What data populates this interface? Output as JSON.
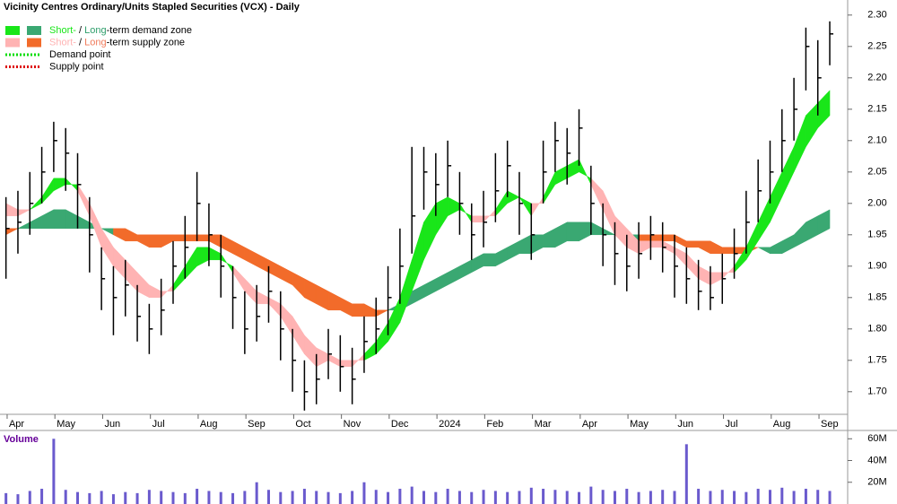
{
  "chart_data": [
    {
      "type": "hlc",
      "title": "Vicinity Centres Ordinary/Units Stapled Securities (VCX) - Daily",
      "legend": [
        {
          "parts": [
            {
              "text": "Short-",
              "color": "#19e619"
            },
            {
              "text": " / "
            },
            {
              "text": "Long",
              "color": "#2e9e6b"
            },
            {
              "text": "-term demand zone"
            }
          ],
          "swatches": [
            "#19e619",
            "#3aa872"
          ]
        },
        {
          "parts": [
            {
              "text": "Short-",
              "color": "#ffb3b3"
            },
            {
              "text": " / "
            },
            {
              "text": "Long",
              "color": "#f07a5a"
            },
            {
              "text": "-term supply zone"
            }
          ],
          "swatches": [
            "#ffb3b3",
            "#f26b2a"
          ]
        },
        {
          "parts": [
            {
              "text": "Demand point"
            }
          ],
          "line_color": "#00dd00"
        },
        {
          "parts": [
            {
              "text": "Supply point"
            }
          ],
          "line_color": "#dd0000"
        }
      ],
      "categories": [
        null,
        "Apr",
        null,
        null,
        null,
        "May",
        null,
        null,
        null,
        "Jun",
        null,
        null,
        null,
        "Jul",
        null,
        null,
        null,
        "Aug",
        null,
        null,
        null,
        "Sep",
        null,
        null,
        null,
        "Oct",
        null,
        null,
        null,
        "Nov",
        null,
        null,
        null,
        "Dec",
        null,
        null,
        null,
        "2024",
        null,
        null,
        null,
        "Feb",
        null,
        null,
        null,
        "Mar",
        null,
        null,
        null,
        "Apr",
        null,
        null,
        null,
        "May",
        null,
        null,
        null,
        "Jun",
        null,
        null,
        null,
        "Jul",
        null,
        null,
        null,
        "Aug",
        null,
        null,
        null,
        "Sep"
      ],
      "high": [
        2.01,
        2.02,
        2.05,
        2.09,
        2.13,
        2.12,
        2.08,
        2.01,
        1.93,
        1.9,
        1.91,
        1.87,
        1.84,
        1.88,
        1.94,
        1.98,
        2.05,
        2.0,
        1.95,
        1.9,
        1.86,
        1.87,
        1.9,
        1.86,
        1.8,
        1.75,
        1.76,
        1.8,
        1.79,
        1.77,
        1.82,
        1.85,
        1.9,
        1.96,
        2.09,
        2.09,
        2.08,
        2.1,
        2.05,
        2.0,
        2.02,
        2.08,
        2.1,
        2.05,
        2.0,
        2.1,
        2.13,
        2.12,
        2.15,
        2.06,
        2.0,
        1.97,
        1.95,
        1.97,
        1.98,
        1.97,
        1.95,
        1.93,
        1.91,
        1.9,
        1.92,
        1.96,
        2.02,
        2.07,
        2.1,
        2.15,
        2.2,
        2.28,
        2.26,
        2.29
      ],
      "low": [
        1.88,
        1.92,
        1.95,
        2.0,
        2.05,
        2.02,
        1.96,
        1.89,
        1.83,
        1.79,
        1.82,
        1.78,
        1.76,
        1.79,
        1.84,
        1.88,
        1.94,
        1.9,
        1.85,
        1.8,
        1.76,
        1.78,
        1.81,
        1.75,
        1.7,
        1.67,
        1.68,
        1.72,
        1.7,
        1.68,
        1.73,
        1.76,
        1.79,
        1.84,
        1.92,
        1.99,
        1.98,
        2.01,
        1.95,
        1.91,
        1.93,
        1.97,
        2.01,
        1.95,
        1.91,
        2.0,
        2.05,
        2.03,
        2.06,
        1.95,
        1.9,
        1.87,
        1.86,
        1.88,
        1.91,
        1.89,
        1.85,
        1.84,
        1.83,
        1.83,
        1.84,
        1.88,
        1.92,
        1.97,
        2.0,
        2.05,
        2.1,
        2.18,
        2.14,
        2.22
      ],
      "close": [
        1.96,
        1.97,
        2.0,
        2.05,
        2.1,
        2.08,
        2.03,
        1.95,
        1.88,
        1.85,
        1.87,
        1.82,
        1.8,
        1.83,
        1.9,
        1.93,
        2.0,
        1.95,
        1.9,
        1.85,
        1.8,
        1.82,
        1.86,
        1.8,
        1.75,
        1.7,
        1.72,
        1.76,
        1.74,
        1.72,
        1.78,
        1.8,
        1.85,
        1.9,
        1.98,
        2.05,
        2.03,
        2.06,
        2.0,
        1.95,
        1.97,
        2.02,
        2.06,
        2.0,
        1.95,
        2.05,
        2.1,
        2.08,
        2.12,
        2.0,
        1.95,
        1.92,
        1.9,
        1.92,
        1.95,
        1.93,
        1.9,
        1.88,
        1.86,
        1.85,
        1.88,
        1.92,
        1.97,
        2.02,
        2.05,
        2.1,
        2.15,
        2.25,
        2.2,
        2.27
      ],
      "zones": {
        "short": [
          [
            1.98,
            1.98,
            1.99,
            2.01,
            2.04,
            2.04,
            2.02,
            1.98,
            1.93,
            1.9,
            1.88,
            1.86,
            1.85,
            1.85,
            1.87,
            1.9,
            1.93,
            1.93,
            1.92,
            1.89,
            1.86,
            1.84,
            1.84,
            1.82,
            1.79,
            1.76,
            1.74,
            1.75,
            1.74,
            1.74,
            1.76,
            1.78,
            1.81,
            1.85,
            1.91,
            1.97,
            2.0,
            2.01,
            2.0,
            1.97,
            1.97,
            1.99,
            2.02,
            2.01,
            1.98,
            2.01,
            2.05,
            2.06,
            2.07,
            2.03,
            1.99,
            1.95,
            1.93,
            1.92,
            1.93,
            1.93,
            1.92,
            1.9,
            1.88,
            1.87,
            1.88,
            1.9,
            1.93,
            1.97,
            2.01,
            2.05,
            2.09,
            2.14,
            2.16,
            2.18
          ],
          [
            2.0,
            1.99,
            1.99,
            2.0,
            2.02,
            2.03,
            2.03,
            2.0,
            1.96,
            1.93,
            1.91,
            1.89,
            1.87,
            1.86,
            1.86,
            1.88,
            1.9,
            1.91,
            1.91,
            1.9,
            1.88,
            1.86,
            1.85,
            1.84,
            1.82,
            1.79,
            1.77,
            1.76,
            1.75,
            1.75,
            1.75,
            1.76,
            1.78,
            1.81,
            1.86,
            1.91,
            1.95,
            1.98,
            1.99,
            1.98,
            1.98,
            1.98,
            2.0,
            2.01,
            2.0,
            2.0,
            2.03,
            2.04,
            2.05,
            2.04,
            2.02,
            1.98,
            1.96,
            1.94,
            1.94,
            1.94,
            1.93,
            1.92,
            1.9,
            1.89,
            1.89,
            1.89,
            1.91,
            1.94,
            1.97,
            2.01,
            2.05,
            2.09,
            2.12,
            2.14
          ]
        ],
        "long": [
          [
            1.95,
            1.96,
            1.97,
            1.98,
            1.99,
            1.99,
            1.98,
            1.97,
            1.96,
            1.95,
            1.94,
            1.94,
            1.93,
            1.93,
            1.94,
            1.94,
            1.94,
            1.94,
            1.93,
            1.92,
            1.91,
            1.9,
            1.89,
            1.88,
            1.87,
            1.85,
            1.84,
            1.83,
            1.83,
            1.82,
            1.82,
            1.82,
            1.83,
            1.84,
            1.86,
            1.87,
            1.88,
            1.89,
            1.9,
            1.91,
            1.92,
            1.92,
            1.93,
            1.94,
            1.95,
            1.95,
            1.96,
            1.97,
            1.97,
            1.97,
            1.96,
            1.95,
            1.95,
            1.94,
            1.94,
            1.94,
            1.94,
            1.93,
            1.93,
            1.92,
            1.92,
            1.92,
            1.92,
            1.93,
            1.93,
            1.94,
            1.95,
            1.97,
            1.98,
            1.99
          ],
          [
            1.96,
            1.96,
            1.96,
            1.96,
            1.96,
            1.96,
            1.96,
            1.96,
            1.96,
            1.96,
            1.96,
            1.95,
            1.95,
            1.95,
            1.95,
            1.95,
            1.95,
            1.95,
            1.95,
            1.94,
            1.93,
            1.92,
            1.91,
            1.9,
            1.89,
            1.88,
            1.87,
            1.86,
            1.85,
            1.84,
            1.84,
            1.83,
            1.83,
            1.83,
            1.84,
            1.85,
            1.86,
            1.87,
            1.88,
            1.89,
            1.9,
            1.9,
            1.91,
            1.92,
            1.92,
            1.93,
            1.93,
            1.94,
            1.94,
            1.95,
            1.95,
            1.95,
            1.95,
            1.95,
            1.95,
            1.95,
            1.95,
            1.94,
            1.94,
            1.94,
            1.93,
            1.93,
            1.93,
            1.93,
            1.92,
            1.92,
            1.93,
            1.94,
            1.95,
            1.96
          ]
        ]
      },
      "ylim": [
        1.664,
        2.324
      ],
      "yticks": [
        {
          "value": 1.7,
          "label": "1.70"
        },
        {
          "value": 1.75,
          "label": "1.75"
        },
        {
          "value": 1.8,
          "label": "1.80"
        },
        {
          "value": 1.85,
          "label": "1.85"
        },
        {
          "value": 1.9,
          "label": "1.90"
        },
        {
          "value": 1.95,
          "label": "1.95"
        },
        {
          "value": 2.0,
          "label": "2.00"
        },
        {
          "value": 2.05,
          "label": "2.05"
        },
        {
          "value": 2.1,
          "label": "2.10"
        },
        {
          "value": 2.15,
          "label": "2.15"
        },
        {
          "value": 2.2,
          "label": "2.20"
        },
        {
          "value": 2.25,
          "label": "2.25"
        },
        {
          "value": 2.3,
          "label": "2.30"
        }
      ],
      "color": "#000000"
    },
    {
      "type": "bar",
      "title": "Volume",
      "values": [
        10000000,
        9000000,
        12000000,
        14000000,
        60000000,
        13000000,
        11000000,
        10000000,
        12000000,
        9000000,
        11000000,
        10000000,
        13000000,
        12000000,
        11000000,
        10000000,
        14000000,
        12000000,
        11000000,
        10000000,
        12000000,
        20000000,
        13000000,
        11000000,
        12000000,
        14000000,
        12000000,
        11000000,
        10000000,
        12000000,
        20000000,
        13000000,
        11000000,
        14000000,
        16000000,
        12000000,
        11000000,
        14000000,
        12000000,
        11000000,
        13000000,
        12000000,
        11000000,
        12000000,
        15000000,
        14000000,
        13000000,
        12000000,
        11000000,
        16000000,
        13000000,
        12000000,
        14000000,
        11000000,
        12000000,
        13000000,
        12000000,
        55000000,
        14000000,
        12000000,
        13000000,
        12000000,
        11000000,
        14000000,
        13000000,
        15000000,
        12000000,
        14000000,
        13000000,
        12000000
      ],
      "ylim": [
        0,
        66000000
      ],
      "yticks": [
        {
          "value": 20000000,
          "label": "20M"
        },
        {
          "value": 40000000,
          "label": "40M"
        },
        {
          "value": 60000000,
          "label": "60M"
        }
      ],
      "color": "#6a5acd"
    }
  ]
}
